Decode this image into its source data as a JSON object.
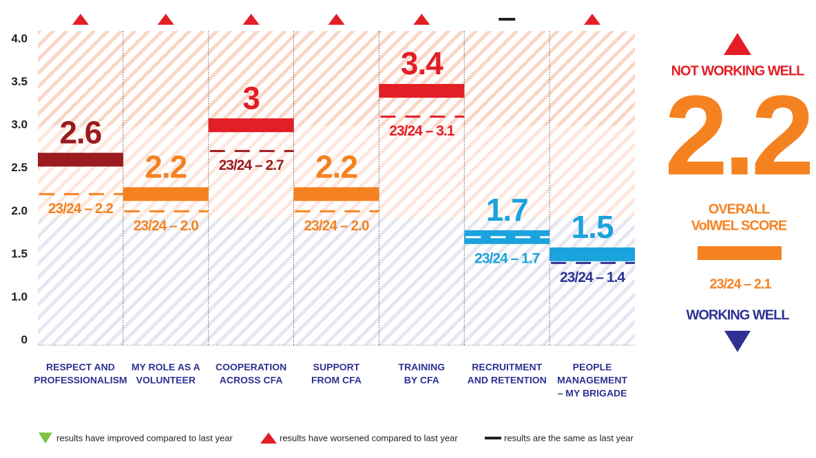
{
  "chart_data": {
    "type": "bar",
    "categories": [
      [
        "RESPECT AND",
        "PROFESSIONALISM"
      ],
      [
        "MY ROLE AS A",
        "VOLUNTEER"
      ],
      [
        "COOPERATION",
        "ACROSS CFA"
      ],
      [
        "SUPPORT",
        "FROM CFA"
      ],
      [
        "TRAINING",
        "BY CFA"
      ],
      [
        "RECRUITMENT",
        "AND RETENTION"
      ],
      [
        "PEOPLE",
        "MANAGEMENT",
        "– MY BRIGADE"
      ]
    ],
    "values": [
      2.6,
      2.2,
      3.0,
      2.2,
      3.4,
      1.7,
      1.5
    ],
    "colors": [
      "#9b1b1f",
      "#f58220",
      "#e31e24",
      "#f58220",
      "#e31e24",
      "#1aa3dc",
      "#1aa3dc"
    ],
    "previous_values": [
      2.2,
      2.0,
      2.7,
      2.0,
      3.1,
      1.7,
      1.4
    ],
    "previous_value_labels": [
      "23/24 – 2.2",
      "23/24 – 2.0",
      "23/24 – 2.7",
      "23/24 – 2.0",
      "23/24 – 3.1",
      "23/24 – 1.7",
      "23/24 – 1.4"
    ],
    "previous_colors": [
      "#f58220",
      "#f58220",
      "#9b1b1f",
      "#f58220",
      "#e31e24",
      "#1aa3dc",
      "#2e3192"
    ],
    "trend": [
      1,
      1,
      1,
      1,
      1,
      2,
      1
    ],
    "ylim": [
      0,
      4
    ],
    "yticks": [
      0,
      {
        "value": 1,
        "label": "1.0"
      },
      1.5,
      {
        "value": 2,
        "label": "2.0"
      },
      2.5,
      {
        "value": 3,
        "label": "3.0"
      },
      3.5,
      {
        "value": 4,
        "label": "4.0"
      }
    ],
    "legend": [
      {
        "label": "results have improved compared to last year",
        "color": "#7dc242"
      },
      {
        "label": "results have worsened compared to last year",
        "color": "#e31e24"
      },
      {
        "label": "results are the same as last year",
        "color": "#231f20"
      }
    ],
    "side_panel": {
      "top_label": "NOT WORKING WELL",
      "overall_value": 2.2,
      "overall_title": [
        "OVERALL",
        "VolWEL SCORE"
      ],
      "overall_previous_label": "23/24 – 2.1",
      "bottom_label": "WORKING WELL"
    }
  }
}
